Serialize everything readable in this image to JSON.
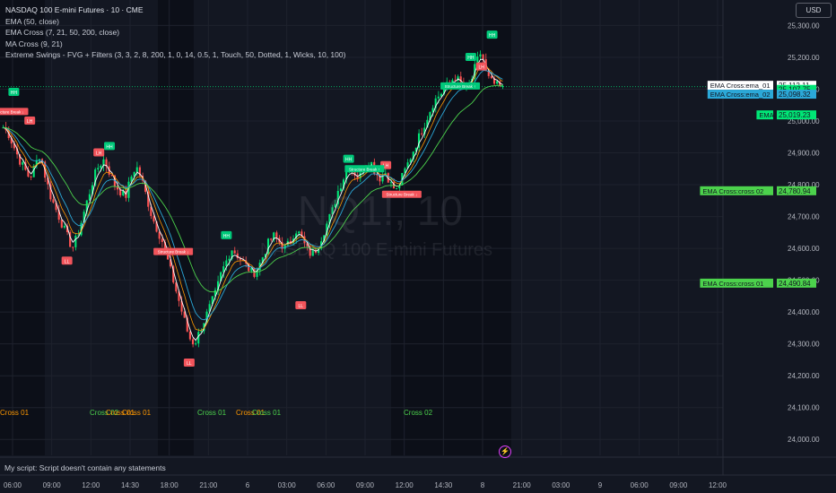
{
  "legend": {
    "title": "NASDAQ 100 E-mini Futures · 10 · CME",
    "ema": "EMA (50, close)",
    "ema_cross": "EMA Cross (7, 21, 50, 200, close)",
    "ma_cross": "MA Cross (9, 21)",
    "swings": "Extreme Swings - FVG + Filters (3, 3, 2, 8, 200, 1, 0, 14, 0.5, 1, Touch, 50, Dotted, 1, Wicks, 10, 100)"
  },
  "currency": "USD",
  "watermark": {
    "symbol": "NQ1!, 10",
    "name": "NASDAQ 100 E-mini Futures"
  },
  "status_bar": "My script: Script doesn't contain any statements",
  "colors": {
    "background": "#131722",
    "up_candle": "#00e676",
    "down_candle": "#ff5252",
    "ema_white": "#ffffff",
    "ema_cyan": "#2ba8d8",
    "ema_green": "#4cd24c",
    "ema_orange": "#ff9800",
    "hh_label": "#00c97a",
    "lh_label": "#f2545b",
    "grid": "#1e222d"
  },
  "chart_data": {
    "type": "candlestick",
    "symbol": "NASDAQ 100 E-mini Futures",
    "y_ticks": [
      24000,
      24100,
      24200,
      24300,
      24400,
      24500,
      24600,
      24700,
      24800,
      24900,
      25000,
      25100,
      25200,
      25300
    ],
    "ylim": [
      23950,
      25380
    ],
    "x_ticks": [
      "06:00",
      "09:00",
      "12:00",
      "14:30",
      "18:00",
      "21:00",
      "6",
      "03:00",
      "06:00",
      "09:00",
      "12:00",
      "14:30",
      "8",
      "21:00",
      "03:00",
      "9",
      "06:00",
      "09:00",
      "12:00"
    ],
    "price_path": [
      24980,
      24960,
      24920,
      24880,
      24850,
      24820,
      24860,
      24900,
      24820,
      24760,
      24720,
      24680,
      24640,
      24600,
      24640,
      24700,
      24760,
      24820,
      24860,
      24880,
      24840,
      24800,
      24780,
      24760,
      24820,
      24860,
      24820,
      24760,
      24700,
      24660,
      24620,
      24560,
      24500,
      24440,
      24380,
      24320,
      24300,
      24340,
      24380,
      24420,
      24460,
      24520,
      24560,
      24600,
      24580,
      24560,
      24540,
      24520,
      24540,
      24580,
      24620,
      24640,
      24620,
      24600,
      24620,
      24660,
      24640,
      24600,
      24580,
      24600,
      24640,
      24680,
      24720,
      24780,
      24820,
      24860,
      24840,
      24820,
      24860,
      24880,
      24840,
      24820,
      24840,
      24800,
      24780,
      24820,
      24860,
      24900,
      24940,
      24980,
      25020,
      25060,
      25080,
      25100,
      25120,
      25140,
      25120,
      25100,
      25120,
      25180,
      25220,
      25140,
      25120,
      25110,
      25100
    ],
    "series": [
      {
        "name": "EMA Cross:ema_01",
        "last": "25,112.11"
      },
      {
        "name": "",
        "last": "25,107.75"
      },
      {
        "name": "EMA Cross:ema_02",
        "last": "25,098.32"
      },
      {
        "name": "EMA",
        "last": "25,019.23"
      },
      {
        "name": "EMA Cross:cross 02",
        "last": "24,780.94"
      },
      {
        "name": "EMA Cross:cross 01",
        "last": "24,490.84"
      }
    ],
    "swing_labels": [
      {
        "text": "HH",
        "i": 2,
        "price": 25090
      },
      {
        "text": "LH",
        "i": 5,
        "price": 25000
      },
      {
        "text": "LL",
        "i": 12,
        "price": 24560
      },
      {
        "text": "LH",
        "i": 18,
        "price": 24900
      },
      {
        "text": "HH",
        "i": 20,
        "price": 24920
      },
      {
        "text": "LL",
        "i": 35,
        "price": 24240
      },
      {
        "text": "HH",
        "i": 42,
        "price": 24640
      },
      {
        "text": "LL",
        "i": 56,
        "price": 24420
      },
      {
        "text": "HH",
        "i": 65,
        "price": 24880
      },
      {
        "text": "LH",
        "i": 72,
        "price": 24860
      },
      {
        "text": "HH",
        "i": 88,
        "price": 25200
      },
      {
        "text": "LH",
        "i": 90,
        "price": 25170
      },
      {
        "text": "HH",
        "i": 92,
        "price": 25270
      }
    ],
    "structure_breaks": [
      {
        "text": "Structure Break ↓",
        "i": 1,
        "price": 25030
      },
      {
        "text": "Structure Break ↓",
        "i": 32,
        "price": 24590
      },
      {
        "text": "Structure Break ↑",
        "i": 68,
        "price": 24850
      },
      {
        "text": "Structure Break ↓",
        "i": 75,
        "price": 24770
      },
      {
        "text": "Structure Break ↑",
        "i": 86,
        "price": 25110
      }
    ],
    "cross_labels": [
      {
        "text": "Cross 01",
        "x": 0,
        "color": "#ff9800"
      },
      {
        "text": "Cross 02",
        "x": 100,
        "color": "#4cd24c"
      },
      {
        "text": "Cross 01",
        "x": 118,
        "color": "#ff9800"
      },
      {
        "text": "Cross 01",
        "x": 136,
        "color": "#ff9800"
      },
      {
        "text": "Cross 01",
        "x": 220,
        "color": "#4cd24c"
      },
      {
        "text": "Cross 01",
        "x": 263,
        "color": "#ff9800"
      },
      {
        "text": "Cross 01",
        "x": 281,
        "color": "#4cd24c"
      },
      {
        "text": "Cross 02",
        "x": 450,
        "color": "#4cd24c"
      }
    ]
  }
}
